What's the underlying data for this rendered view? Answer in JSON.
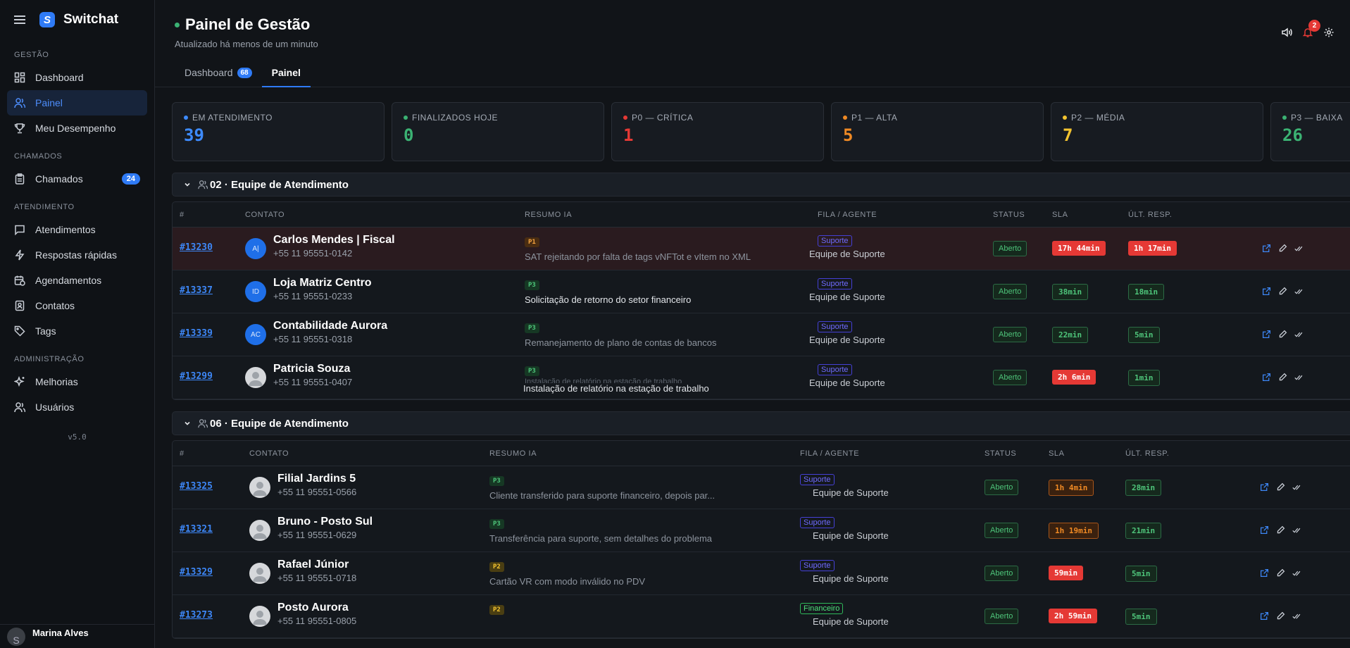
{
  "app": {
    "name": "Switchat",
    "version": "v5.0"
  },
  "sidebar": {
    "sections": [
      "GESTÃO",
      "CHAMADOS",
      "ATENDIMENTO",
      "ADMINISTRAÇÃO"
    ],
    "items": [
      {
        "label": "Dashboard"
      },
      {
        "label": "Painel"
      },
      {
        "label": "Meu Desempenho"
      },
      {
        "label": "Chamados",
        "count": "24"
      },
      {
        "label": "Atendimentos"
      },
      {
        "label": "Respostas rápidas"
      },
      {
        "label": "Agendamentos"
      },
      {
        "label": "Contatos"
      },
      {
        "label": "Tags"
      },
      {
        "label": "Melhorias"
      },
      {
        "label": "Usuários"
      }
    ],
    "user": {
      "initial": "S",
      "name": "Marina Alves"
    }
  },
  "header": {
    "title": "Painel de Gestão",
    "subtitle": "Atualizado há menos de um minuto",
    "notifications": "2",
    "tabs": [
      {
        "label": "Dashboard",
        "count": "68"
      },
      {
        "label": "Painel"
      }
    ]
  },
  "kpis": [
    {
      "label": "EM ATENDIMENTO",
      "value": "39",
      "color": "#3d8bff"
    },
    {
      "label": "FINALIZADOS HOJE",
      "value": "0",
      "color": "#3bb273"
    },
    {
      "label": "P0 — CRÍTICA",
      "value": "1",
      "color": "#e53935"
    },
    {
      "label": "P1 — ALTA",
      "value": "5",
      "color": "#f08a24"
    },
    {
      "label": "P2 — MÉDIA",
      "value": "7",
      "color": "#f4c430"
    },
    {
      "label": "P3 — BAIXA",
      "value": "26",
      "color": "#3bb273"
    }
  ],
  "columns": [
    "#",
    "CONTATO",
    "RESUMO IA",
    "FILA / AGENTE",
    "STATUS",
    "SLA",
    "ÚLT. RESP."
  ],
  "groups": [
    {
      "title": "02 · Equipe de Atendimento",
      "rows": [
        {
          "id": "#13230",
          "avatar": "A|",
          "name": "Carlos Mendes | Fiscal",
          "phone": "+55 11 95551-0142",
          "prio": "P1",
          "summary": "SAT rejeitando por falta de tags vNFTot e vItem no XML",
          "summary2": "",
          "queue": "Suporte",
          "agent": "Equipe de Suporte",
          "status": "Aberto",
          "sla": "17h 44min",
          "resp": "1h 17min"
        },
        {
          "id": "#13337",
          "avatar": "ID",
          "name": "Loja Matriz Centro",
          "phone": "+55 11 95551-0233",
          "prio": "P3",
          "summary": "Solicitação de retorno do setor financeiro",
          "summary2": "",
          "queue": "Suporte",
          "agent": "Equipe de Suporte",
          "status": "Aberto",
          "sla": "38min",
          "resp": "18min"
        },
        {
          "id": "#13339",
          "avatar": "AC",
          "name": "Contabilidade Aurora",
          "phone": "+55 11 95551-0318",
          "prio": "P3",
          "summary": "Remanejamento de plano de contas de bancos",
          "summary2": "",
          "queue": "Suporte",
          "agent": "Equipe de Suporte",
          "status": "Aberto",
          "sla": "22min",
          "resp": "5min"
        },
        {
          "id": "#13299",
          "avatar": "",
          "name": "Patricia Souza",
          "phone": "+55 11 95551-0407",
          "prio": "P3",
          "summary": "Instalação de relatório na estação de trabalho",
          "summary2": "Instalação de relatório na estação de trabalho",
          "queue": "Suporte",
          "agent": "Equipe de Suporte",
          "status": "Aberto",
          "sla": "2h 6min",
          "resp": "1min"
        }
      ]
    },
    {
      "title": "06 · Equipe de Atendimento",
      "rows": [
        {
          "id": "#13325",
          "avatar": "",
          "name": "Filial Jardins 5",
          "phone": "+55 11 95551-0566",
          "prio": "P3",
          "summary": "Cliente transferido para suporte financeiro, depois par...",
          "queue": "Suporte",
          "agent": "Equipe de Suporte",
          "status": "Aberto",
          "sla": "1h 4min",
          "resp": "28min"
        },
        {
          "id": "#13321",
          "avatar": "",
          "name": "Bruno - Posto Sul",
          "phone": "+55 11 95551-0629",
          "prio": "P3",
          "summary": "Transferência para suporte, sem detalhes do problema",
          "queue": "Suporte",
          "agent": "Equipe de Suporte",
          "status": "Aberto",
          "sla": "1h 19min",
          "resp": "21min"
        },
        {
          "id": "#13329",
          "avatar": "",
          "name": "Rafael Júnior",
          "phone": "+55 11 95551-0718",
          "prio": "P2",
          "summary": "Cartão VR com modo inválido no PDV",
          "queue": "Suporte",
          "agent": "Equipe de Suporte",
          "status": "Aberto",
          "sla": "59min",
          "resp": "5min"
        },
        {
          "id": "#13273",
          "avatar": "",
          "name": "Posto Aurora",
          "phone": "+55 11 95551-0805",
          "prio": "P2",
          "summary": "",
          "queue": "Financeiro",
          "agent": "Equipe de Suporte",
          "status": "Aberto",
          "sla": "2h 59min",
          "resp": "5min"
        }
      ]
    }
  ]
}
